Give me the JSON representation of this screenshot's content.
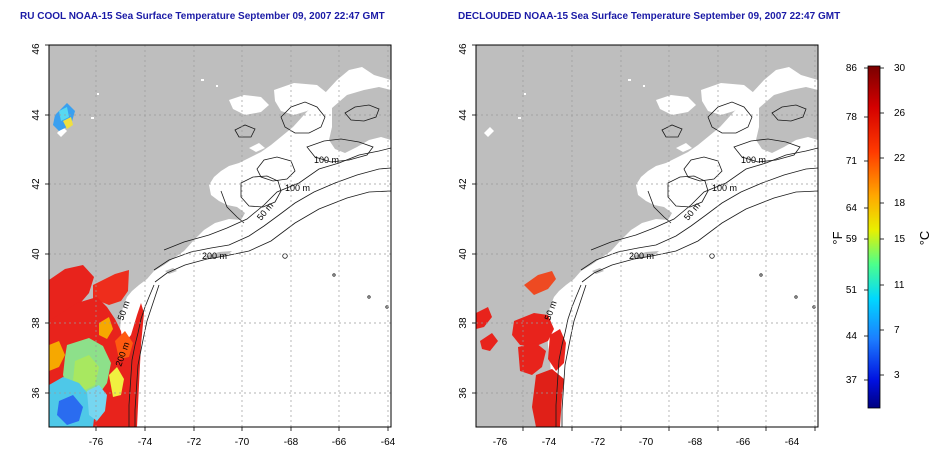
{
  "panels": [
    {
      "title": "RU COOL NOAA-15 Sea Surface Temperature September 09, 2007 22:47 GMT",
      "contour_labels": [
        "100 m",
        "100 m",
        "50 m",
        "200 m",
        "50 m",
        "200 m"
      ]
    },
    {
      "title": "DECLOUDED NOAA-15 Sea Surface Temperature September 09, 2007 22:47 GMT",
      "contour_labels": [
        "100 m",
        "100 m",
        "50 m",
        "200 m",
        "50 m"
      ]
    }
  ],
  "axes": {
    "lon_ticks": [
      "-76",
      "-74",
      "-72",
      "-70",
      "-68",
      "-66",
      "-64"
    ],
    "lat_ticks": [
      "36",
      "38",
      "40",
      "42",
      "44",
      "46"
    ]
  },
  "colorbar": {
    "f_unit": "°F",
    "c_unit": "°C",
    "f_ticks": [
      "86",
      "78",
      "71",
      "64",
      "59",
      "51",
      "44",
      "37"
    ],
    "c_ticks": [
      "30",
      "26",
      "22",
      "18",
      "15",
      "11",
      "7",
      "3"
    ]
  },
  "colors": {
    "land": "#bebebe",
    "ocean": "#ffffff",
    "warm": "#e8231c",
    "title": "#1a1aa6"
  }
}
